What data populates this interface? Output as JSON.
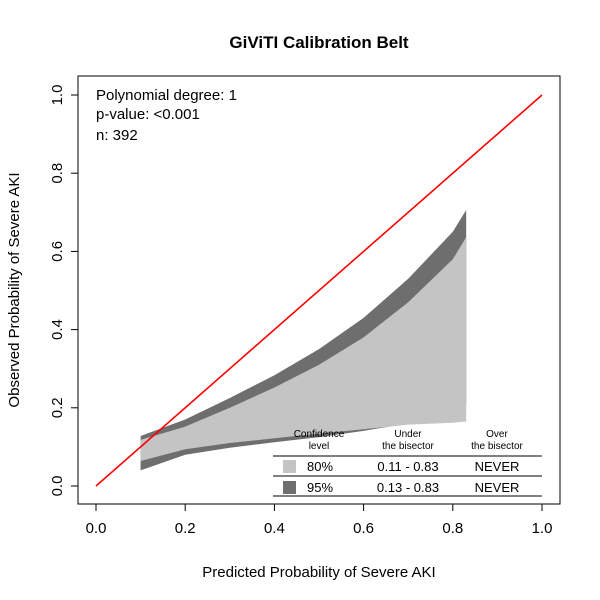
{
  "chart_data": {
    "type": "area",
    "title": "GiViTI Calibration Belt",
    "xlabel": "Predicted Probability of Severe AKI",
    "ylabel": "Observed Probability of Severe AKI",
    "xlim": [
      0,
      1
    ],
    "ylim": [
      0,
      1
    ],
    "xticks": [
      0.0,
      0.2,
      0.4,
      0.6,
      0.8,
      1.0
    ],
    "xtick_labels": [
      "0.0",
      "0.2",
      "0.4",
      "0.6",
      "0.8",
      "1.0"
    ],
    "yticks": [
      0.0,
      0.2,
      0.4,
      0.6,
      0.8,
      1.0
    ],
    "ytick_labels": [
      "0.0",
      "0.2",
      "0.4",
      "0.6",
      "0.8",
      "1.0"
    ],
    "grid": false,
    "annotations": [
      "Polynomial degree: 1",
      "p-value: <0.001",
      "n: 392"
    ],
    "bisector": {
      "x": [
        0,
        1
      ],
      "y": [
        0,
        1
      ],
      "color": "#ff0000"
    },
    "belts": [
      {
        "level": "95%",
        "color": "#6e6e6e",
        "x": [
          0.1,
          0.2,
          0.3,
          0.4,
          0.5,
          0.6,
          0.7,
          0.8,
          0.83
        ],
        "upper": [
          0.128,
          0.17,
          0.225,
          0.283,
          0.35,
          0.43,
          0.53,
          0.65,
          0.706
        ],
        "lower": [
          0.04,
          0.08,
          0.098,
          0.112,
          0.125,
          0.141,
          0.16,
          0.188,
          0.21
        ]
      },
      {
        "level": "80%",
        "color": "#c4c4c4",
        "x": [
          0.1,
          0.2,
          0.3,
          0.4,
          0.5,
          0.6,
          0.7,
          0.8,
          0.83
        ],
        "upper": [
          0.118,
          0.152,
          0.2,
          0.252,
          0.31,
          0.38,
          0.47,
          0.58,
          0.636
        ],
        "lower": [
          0.064,
          0.094,
          0.11,
          0.122,
          0.134,
          0.145,
          0.157,
          0.162,
          0.165
        ]
      }
    ],
    "legend_table": {
      "headers": [
        "Confidence\nlevel",
        "Under\nthe bisector",
        "Over\nthe bisector"
      ],
      "rows": [
        {
          "level": "80%",
          "under": "0.11 - 0.83",
          "over": "NEVER",
          "color": "#c4c4c4"
        },
        {
          "level": "95%",
          "under": "0.13 - 0.83",
          "over": "NEVER",
          "color": "#6e6e6e"
        }
      ]
    }
  }
}
